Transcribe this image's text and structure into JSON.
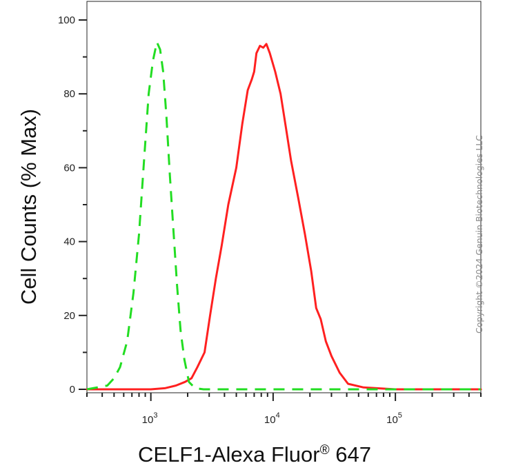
{
  "chart_data": {
    "type": "line",
    "title": "",
    "xlabel": "CELF1-Alexa Fluor",
    "xlabel_superscript": "®",
    "xlabel_suffix": " 647",
    "ylabel": "Cell Counts (% Max)",
    "x_scale": "log",
    "xlim": [
      300,
      500000
    ],
    "ylim": [
      0,
      105
    ],
    "x_ticks": [
      {
        "value": 1000,
        "base": "10",
        "exp": "3"
      },
      {
        "value": 10000,
        "base": "10",
        "exp": "4"
      },
      {
        "value": 100000,
        "base": "10",
        "exp": "5"
      }
    ],
    "y_ticks": [
      0,
      20,
      40,
      60,
      80,
      100
    ],
    "grid": false,
    "legend": "none",
    "series": [
      {
        "color": "#ff2020",
        "style": "solid",
        "points": [
          [
            300,
            0
          ],
          [
            1000,
            0
          ],
          [
            1300,
            0.3
          ],
          [
            1600,
            1
          ],
          [
            1900,
            2
          ],
          [
            2150,
            3
          ],
          [
            2400,
            6
          ],
          [
            2750,
            10
          ],
          [
            3050,
            20
          ],
          [
            3400,
            30
          ],
          [
            3800,
            39
          ],
          [
            4300,
            50
          ],
          [
            5000,
            60
          ],
          [
            5600,
            72
          ],
          [
            6200,
            81
          ],
          [
            6700,
            84
          ],
          [
            7000,
            86
          ],
          [
            7300,
            91
          ],
          [
            7800,
            93
          ],
          [
            8300,
            92.5
          ],
          [
            8800,
            93.5
          ],
          [
            9400,
            91
          ],
          [
            10400,
            86
          ],
          [
            11500,
            80
          ],
          [
            12700,
            71
          ],
          [
            14000,
            62
          ],
          [
            16000,
            52
          ],
          [
            18200,
            42
          ],
          [
            20500,
            32
          ],
          [
            22500,
            22
          ],
          [
            24500,
            19
          ],
          [
            27000,
            13
          ],
          [
            30000,
            9
          ],
          [
            35000,
            4.5
          ],
          [
            41000,
            1.5
          ],
          [
            55000,
            0.5
          ],
          [
            100000,
            0
          ],
          [
            500000,
            0
          ]
        ]
      },
      {
        "color": "#22dd22",
        "style": "dashed",
        "points": [
          [
            300,
            0
          ],
          [
            440,
            1
          ],
          [
            500,
            3
          ],
          [
            560,
            6
          ],
          [
            640,
            13
          ],
          [
            720,
            26
          ],
          [
            800,
            42
          ],
          [
            880,
            62
          ],
          [
            960,
            80
          ],
          [
            1040,
            89
          ],
          [
            1120,
            94
          ],
          [
            1190,
            92
          ],
          [
            1260,
            86
          ],
          [
            1340,
            74
          ],
          [
            1430,
            58
          ],
          [
            1530,
            43
          ],
          [
            1640,
            28
          ],
          [
            1750,
            16
          ],
          [
            1880,
            8
          ],
          [
            2050,
            2
          ],
          [
            2300,
            0.3
          ],
          [
            2700,
            0
          ],
          [
            500000,
            0
          ]
        ]
      }
    ]
  },
  "watermark": {
    "copyright": "Copyright ©2024 Genuin Biotechnologies LLC"
  }
}
